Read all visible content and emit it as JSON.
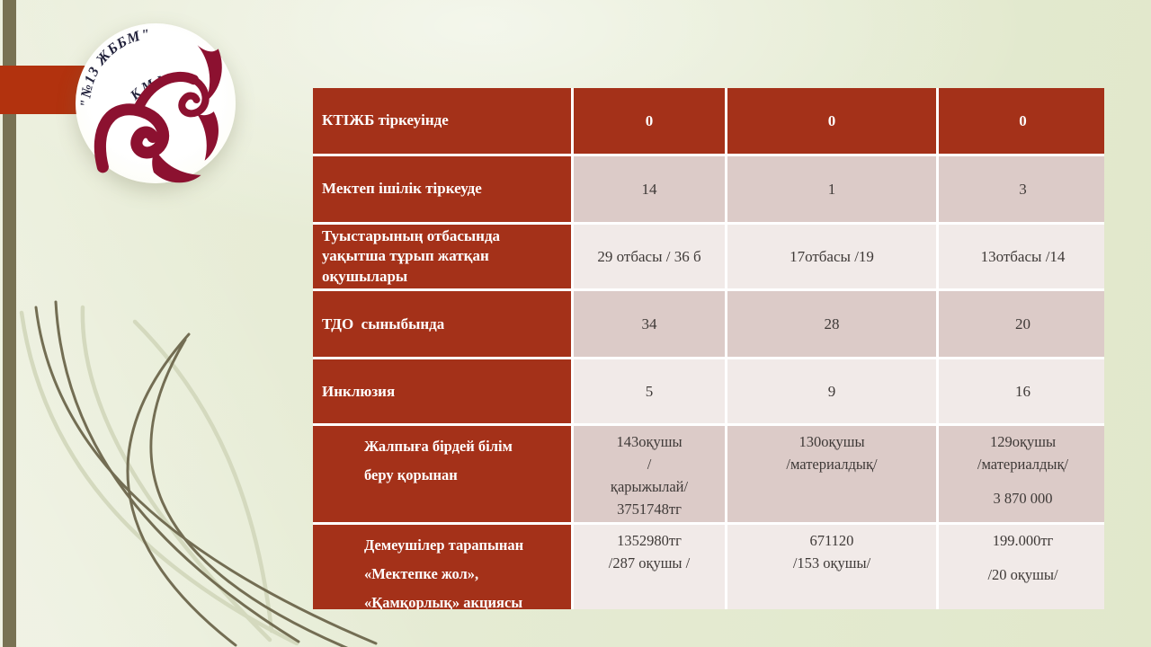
{
  "logo": {
    "arc_text": "\"№13 ЖББМ\"",
    "sub_text": "КММ"
  },
  "colors": {
    "header_red": "#a43119",
    "accent_bar_red": "#b2320e",
    "row_dark": "#dccbc8",
    "row_light": "#f1eae8",
    "ornament_burgundy": "#8c1130",
    "olive_strip": "#787253"
  },
  "table": {
    "rows": [
      {
        "type": "header",
        "indent": false,
        "label_lines": [
          "КТІЖБ тіркеуінде"
        ],
        "cells": [
          [
            "0"
          ],
          [
            "0"
          ],
          [
            "0"
          ]
        ]
      },
      {
        "type": "dark",
        "indent": false,
        "label_lines": [
          "Мектеп ішілік тіркеуде"
        ],
        "cells": [
          [
            "14"
          ],
          [
            "1"
          ],
          [
            "3"
          ]
        ]
      },
      {
        "type": "light",
        "indent": false,
        "label_lines": [
          "Туыстарының отбасында",
          "уақытша тұрып жатқан",
          "оқушылары"
        ],
        "cells": [
          [
            "29 отбасы / 36 б"
          ],
          [
            "17отбасы /19"
          ],
          [
            "13отбасы /14"
          ]
        ]
      },
      {
        "type": "dark",
        "indent": false,
        "label_lines": [
          "ТДО  сыныбында"
        ],
        "cells": [
          [
            "34"
          ],
          [
            "28"
          ],
          [
            "20"
          ]
        ]
      },
      {
        "type": "light",
        "indent": false,
        "label_lines": [
          "Инклюзия"
        ],
        "cells": [
          [
            "5"
          ],
          [
            "9"
          ],
          [
            "16"
          ]
        ]
      },
      {
        "type": "dark",
        "indent": true,
        "top": true,
        "label_lines": [
          "Жалпыға бірдей білім",
          "беру қорынан"
        ],
        "cells": [
          [
            "143оқушы",
            "/",
            "қарыжылай/",
            "3751748тг"
          ],
          [
            "130оқушы",
            "/материалдық/"
          ],
          [
            "129оқушы",
            "/материалдық/",
            "",
            "3 870 000"
          ]
        ]
      },
      {
        "type": "light",
        "indent": true,
        "top": true,
        "label_lines": [
          "Демеушілер тарапынан",
          "«Мектепке жол»,",
          "«Қамқорлық» акциясы"
        ],
        "cells": [
          [
            "1352980тг",
            "/287 оқушы /"
          ],
          [
            "671120",
            "/153 оқушы/"
          ],
          [
            "199.000тг",
            "",
            "/20 оқушы/"
          ]
        ]
      }
    ]
  }
}
